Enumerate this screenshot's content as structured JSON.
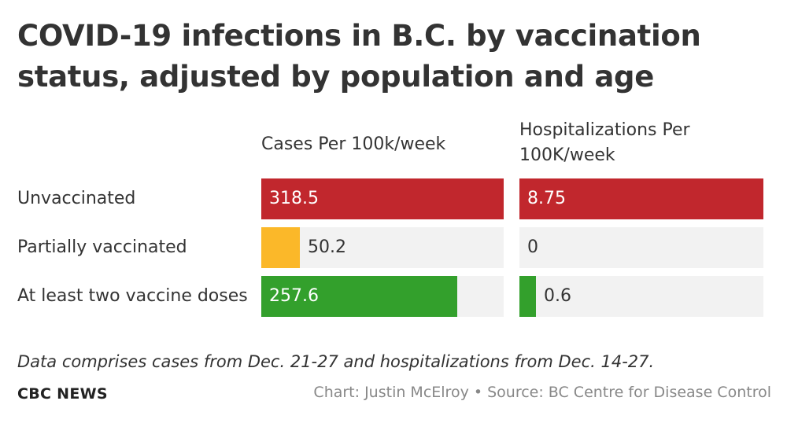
{
  "title": "COVID-19 infections in B.C. by vaccination status, adjusted by population and age",
  "columns": [
    {
      "label": "Cases Per 100k/week"
    },
    {
      "label": "Hospitalizations Per 100K/week"
    }
  ],
  "rows": [
    {
      "label": "Unvaccinated"
    },
    {
      "label": "Partially vaccinated"
    },
    {
      "label": "At least two vaccine doses"
    }
  ],
  "note": "Data comprises cases from Dec. 21-27 and hospitalizations from Dec. 14-27.",
  "brand": "CBC NEWS",
  "source": "Chart: Justin McElroy • Source: BC Centre for Disease Control",
  "colors": {
    "unvaccinated": "#c1272d",
    "partial": "#fbb829",
    "two_doses": "#33a02c",
    "track": "#f2f2f2"
  },
  "chart_data": [
    {
      "type": "bar",
      "title": "Cases Per 100k/week",
      "categories": [
        "Unvaccinated",
        "Partially vaccinated",
        "At least two vaccine doses"
      ],
      "values": [
        318.5,
        50.2,
        257.6
      ],
      "labels": [
        "318.5",
        "50.2",
        "257.6"
      ],
      "xlim": [
        0,
        318.5
      ],
      "orientation": "horizontal"
    },
    {
      "type": "bar",
      "title": "Hospitalizations Per 100K/week",
      "categories": [
        "Unvaccinated",
        "Partially vaccinated",
        "At least two vaccine doses"
      ],
      "values": [
        8.75,
        0,
        0.6
      ],
      "labels": [
        "8.75",
        "0",
        "0.6"
      ],
      "xlim": [
        0,
        8.75
      ],
      "orientation": "horizontal"
    }
  ]
}
